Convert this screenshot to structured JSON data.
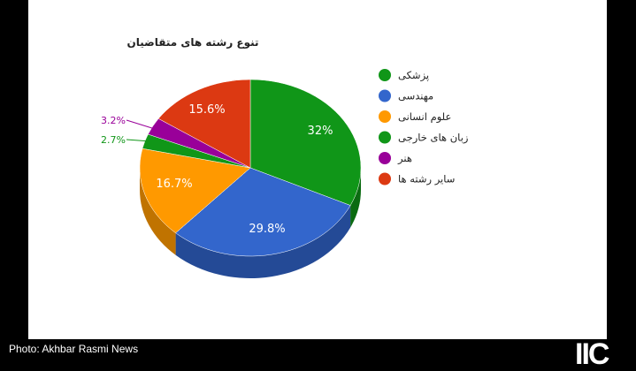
{
  "chart_data": {
    "type": "pie",
    "style": "3d",
    "title": "تنوع رشته های متقاضیان",
    "legend_position": "right",
    "slices": [
      {
        "label": "پزشکی",
        "value": 32,
        "display": "32%",
        "color": "#109618",
        "side": "#0b6b11"
      },
      {
        "label": "مهندسی",
        "value": 29.8,
        "display": "29.8%",
        "color": "#3366cc",
        "side": "#244a96"
      },
      {
        "label": "علوم انسانی",
        "value": 16.7,
        "display": "16.7%",
        "color": "#ff9900",
        "side": "#c07300"
      },
      {
        "label": "زبان های خارجی",
        "value": 2.7,
        "display": "2.7%",
        "color": "#109618",
        "side": "#0b6b11"
      },
      {
        "label": "هنر",
        "value": 3.2,
        "display": "3.2%",
        "color": "#990099",
        "side": "#6e006e"
      },
      {
        "label": "سایر رشته ها",
        "value": 15.6,
        "display": "15.6%",
        "color": "#dc3912",
        "side": "#a3290c"
      }
    ]
  },
  "caption": "Photo: Akhbar Rasmi News",
  "logo_text": "IIC"
}
